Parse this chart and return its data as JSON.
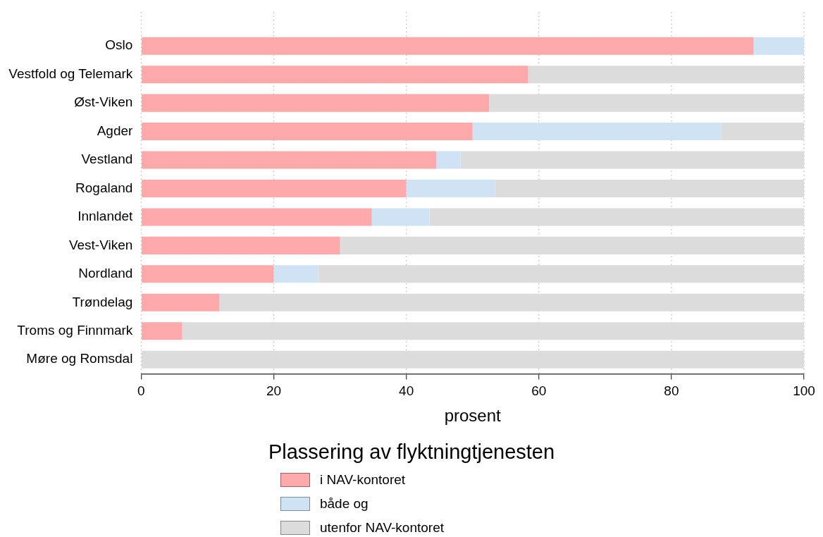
{
  "chart_data": {
    "type": "bar",
    "orientation": "horizontal",
    "stacked": true,
    "xlabel": "prosent",
    "legend_title": "Plassering av flyktningtjenesten",
    "legend": "bottom",
    "grid": "x",
    "categories": [
      "Oslo",
      "Vestfold og Telemark",
      "Øst-Viken",
      "Agder",
      "Vestland",
      "Rogaland",
      "Innlandet",
      "Vest-Viken",
      "Nordland",
      "Trøndelag",
      "Troms og Finnmark",
      "Møre og Romsdal"
    ],
    "xlim": [
      0,
      100
    ],
    "xticks": [
      0,
      20,
      40,
      60,
      80,
      100
    ],
    "series": [
      {
        "name": "i NAV-kontoret",
        "color": "#ffaaaa",
        "values": [
          92.4,
          58.4,
          52.5,
          50.0,
          44.5,
          40.0,
          34.8,
          30.0,
          20.0,
          11.8,
          6.2,
          0
        ]
      },
      {
        "name": "både og",
        "color": "#cfe3f5",
        "values": [
          7.6,
          0,
          0,
          37.5,
          3.7,
          13.4,
          8.7,
          0,
          6.7,
          0,
          0,
          0
        ]
      },
      {
        "name": "utenfor NAV-kontoret",
        "color": "#dcdcdc",
        "values": [
          0,
          41.6,
          47.5,
          12.5,
          51.8,
          46.6,
          56.5,
          70.0,
          73.3,
          88.2,
          93.8,
          100
        ]
      }
    ]
  }
}
